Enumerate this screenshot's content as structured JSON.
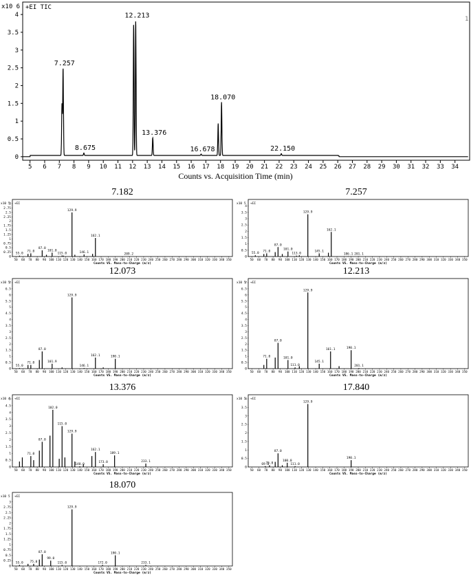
{
  "chart_data": [
    {
      "type": "line",
      "title": "+EI TIC",
      "y_multiplier": "x10 6",
      "xlabel": "Counts vs. Acquisition Time (min)",
      "xlim": [
        4.5,
        35
      ],
      "ylim": [
        -0.1,
        4.35
      ],
      "x_ticks": [
        5,
        6,
        7,
        8,
        9,
        10,
        11,
        12,
        13,
        14,
        15,
        16,
        17,
        18,
        19,
        20,
        21,
        22,
        23,
        24,
        25,
        26,
        27,
        28,
        29,
        30,
        31,
        32,
        33,
        34
      ],
      "y_ticks": [
        0,
        0.5,
        1,
        1.5,
        2,
        2.5,
        3,
        3.5,
        4
      ],
      "corner_mark": "1",
      "peaks": [
        {
          "x": 7.182,
          "y": 1.45
        },
        {
          "x": 7.257,
          "y": 2.45,
          "label": "7.257"
        },
        {
          "x": 8.675,
          "y": 0.07,
          "label": "8.675"
        },
        {
          "x": 12.073,
          "y": 3.7
        },
        {
          "x": 12.213,
          "y": 3.8,
          "label": "12.213"
        },
        {
          "x": 13.376,
          "y": 0.5,
          "label": "13.376"
        },
        {
          "x": 16.678,
          "y": 0.04,
          "label": "16.678"
        },
        {
          "x": 17.84,
          "y": 0.9
        },
        {
          "x": 18.07,
          "y": 1.5,
          "label": "18.070"
        },
        {
          "x": 22.15,
          "y": 0.05,
          "label": "22.150"
        }
      ]
    },
    {
      "type": "bar",
      "title": "7.182",
      "mult": "x10 5",
      "ymax": 3,
      "ylabels": [
        "3",
        "2.75",
        "2.5",
        "2.25",
        "2",
        "1.75",
        "1.5",
        "1.25",
        "1",
        "0.75",
        "0.5",
        "0.25",
        "0"
      ],
      "xlabel": "Counts VS. Mass-to-Charge (m/z)",
      "peaks": [
        [
          55,
          0.05,
          "55.0"
        ],
        [
          71,
          0.18,
          "71.0"
        ],
        [
          87,
          0.35,
          "87.0"
        ],
        [
          101,
          0.22,
          "101.0"
        ],
        [
          115,
          0.06,
          "115.0"
        ],
        [
          129,
          2.5,
          "129.9"
        ],
        [
          146,
          0.12,
          "146.1"
        ],
        [
          162,
          1.05,
          "162.1"
        ],
        [
          209,
          0.02,
          "209.2"
        ],
        [
          67,
          0.15,
          ""
        ],
        [
          93,
          0.1,
          ""
        ],
        [
          117,
          0.05,
          ""
        ],
        [
          133,
          0.1,
          ""
        ],
        [
          158,
          0.15,
          ""
        ]
      ]
    },
    {
      "type": "bar",
      "title": "7.257",
      "mult": "x10 5",
      "ymax": 4.2,
      "ylabels": [
        "4",
        "3.5",
        "3",
        "2.5",
        "2",
        "1.5",
        "1",
        "0.5",
        "0"
      ],
      "xlabel": "Counts VS. Mass-to-Charge (m/z)",
      "peaks": [
        [
          55,
          0.1,
          "55.0"
        ],
        [
          71,
          0.25,
          "71.0"
        ],
        [
          87,
          0.75,
          "87.0"
        ],
        [
          101,
          0.4,
          "101.0"
        ],
        [
          113,
          0.07,
          "113.0"
        ],
        [
          129,
          3.35,
          "129.9"
        ],
        [
          145,
          0.25,
          "145.1"
        ],
        [
          162,
          1.95,
          "162.1"
        ],
        [
          186,
          0.03,
          "186.1"
        ],
        [
          201,
          0.03,
          "201.1"
        ],
        [
          67,
          0.2,
          ""
        ],
        [
          83,
          0.35,
          ""
        ],
        [
          93,
          0.2,
          ""
        ],
        [
          117,
          0.1,
          ""
        ],
        [
          158,
          0.3,
          ""
        ]
      ]
    },
    {
      "type": "bar",
      "title": "12.073",
      "mult": "x10 5",
      "ymax": 7,
      "ylabels": [
        "7",
        "6.5",
        "6",
        "5.5",
        "5",
        "4.5",
        "4",
        "3.5",
        "3",
        "2.5",
        "2",
        "1.5",
        "1",
        "0.5",
        "0"
      ],
      "xlabel": "Counts VS. Mass-to-Charge (m/z)",
      "peaks": [
        [
          55,
          0.05,
          "55.0"
        ],
        [
          71,
          0.3,
          "71.0"
        ],
        [
          87,
          1.4,
          "87.0"
        ],
        [
          101,
          0.4,
          "101.9"
        ],
        [
          146,
          0.05,
          "146.1"
        ],
        [
          129,
          5.8,
          "129.9"
        ],
        [
          162,
          0.9,
          "162.1"
        ],
        [
          190,
          0.8,
          "190.1"
        ],
        [
          83,
          0.7,
          ""
        ],
        [
          67,
          0.3,
          ""
        ],
        [
          115,
          0.1,
          ""
        ],
        [
          173,
          0.1,
          ""
        ]
      ]
    },
    {
      "type": "bar",
      "title": "12.213",
      "mult": "x10 5",
      "ymax": 7,
      "ylabels": [
        "7",
        "6.5",
        "6",
        "5.5",
        "5",
        "4.5",
        "4",
        "3.5",
        "3",
        "2.5",
        "2",
        "1.5",
        "1",
        "0.5",
        "0"
      ],
      "xlabel": "Counts VS. Mass-to-Charge (m/z)",
      "peaks": [
        [
          71,
          0.8,
          "71.0"
        ],
        [
          87,
          2.1,
          "87.0"
        ],
        [
          101,
          0.7,
          "101.0"
        ],
        [
          111,
          0.1,
          "111.0"
        ],
        [
          129,
          6.2,
          "129.9"
        ],
        [
          145,
          0.4,
          "145.1"
        ],
        [
          161,
          1.4,
          "161.1"
        ],
        [
          190,
          1.5,
          "190.1"
        ],
        [
          201,
          0.05,
          "201.1"
        ],
        [
          83,
          0.9,
          ""
        ],
        [
          67,
          0.3,
          ""
        ],
        [
          117,
          0.2,
          ""
        ],
        [
          173,
          0.2,
          ""
        ]
      ]
    },
    {
      "type": "bar",
      "title": "13.376",
      "mult": "x10 4",
      "ymax": 5,
      "ylabels": [
        "5",
        "4.5",
        "4",
        "3.5",
        "3",
        "2.5",
        "2",
        "1.5",
        "1",
        "0.5",
        "0"
      ],
      "xlabel": "Counts VS. Mass-to-Charge (m/z)",
      "peaks": [
        [
          71,
          0.8,
          "71.0"
        ],
        [
          87,
          1.85,
          "87.0"
        ],
        [
          102,
          4.2,
          "102.0"
        ],
        [
          115,
          3.0,
          "115.0"
        ],
        [
          129,
          2.45,
          "129.9"
        ],
        [
          140,
          0.05,
          "140.0"
        ],
        [
          162,
          1.1,
          "162.1"
        ],
        [
          173,
          0.2,
          "173.0"
        ],
        [
          189,
          0.85,
          "189.1"
        ],
        [
          233,
          0.25,
          "233.1"
        ],
        [
          55,
          0.4,
          ""
        ],
        [
          59,
          0.7,
          ""
        ],
        [
          75,
          0.5,
          ""
        ],
        [
          83,
          1.2,
          ""
        ],
        [
          98,
          2.3,
          ""
        ],
        [
          111,
          0.6,
          ""
        ],
        [
          119,
          0.7,
          ""
        ],
        [
          133,
          0.4,
          ""
        ],
        [
          145,
          0.2,
          ""
        ],
        [
          157,
          0.8,
          ""
        ]
      ]
    },
    {
      "type": "bar",
      "title": "17.840",
      "mult": "x10 5",
      "ymax": 4,
      "ylabels": [
        "4",
        "3.5",
        "3",
        "2.5",
        "2",
        "1.5",
        "1",
        "0.5",
        "0"
      ],
      "xlabel": "Counts VS. Mass-to-Charge (m/z)",
      "peaks": [
        [
          69,
          0.05,
          "69.0"
        ],
        [
          75,
          0.1,
          "75.0"
        ],
        [
          87,
          0.8,
          "87.0"
        ],
        [
          100,
          0.25,
          "100.0"
        ],
        [
          111,
          0.05,
          "111.0"
        ],
        [
          129,
          3.7,
          "129.9"
        ],
        [
          190,
          0.4,
          "190.1"
        ],
        [
          83,
          0.3,
          ""
        ],
        [
          93,
          0.1,
          ""
        ]
      ]
    },
    {
      "type": "bar",
      "title": "18.070",
      "mult": "x10 5",
      "ymax": 3.25,
      "ylabels": [
        "3",
        "2.75",
        "2.5",
        "2.25",
        "2",
        "1.75",
        "1.5",
        "1.25",
        "1",
        "0.75",
        "0.5",
        "0.25",
        "0"
      ],
      "xlabel": "Counts VS. Mass-to-Charge (m/z)",
      "peaks": [
        [
          55,
          0.05,
          "55.0"
        ],
        [
          75,
          0.1,
          "75.0"
        ],
        [
          87,
          0.55,
          "87.0"
        ],
        [
          99,
          0.25,
          "99.0"
        ],
        [
          115,
          0.05,
          "115.0"
        ],
        [
          129,
          2.65,
          "129.9"
        ],
        [
          172,
          0.05,
          "172.0"
        ],
        [
          190,
          0.5,
          "190.1"
        ],
        [
          233,
          0.05,
          "233.1"
        ],
        [
          83,
          0.3,
          ""
        ],
        [
          67,
          0.1,
          ""
        ]
      ]
    }
  ],
  "ms_common": {
    "ion_mode": "+EI",
    "x_ticks": [
      50,
      60,
      70,
      80,
      90,
      100,
      110,
      120,
      130,
      140,
      150,
      160,
      170,
      180,
      190,
      200,
      210,
      220,
      230,
      240,
      250,
      260,
      270,
      280,
      290,
      300,
      310,
      320,
      330,
      340,
      350
    ]
  }
}
